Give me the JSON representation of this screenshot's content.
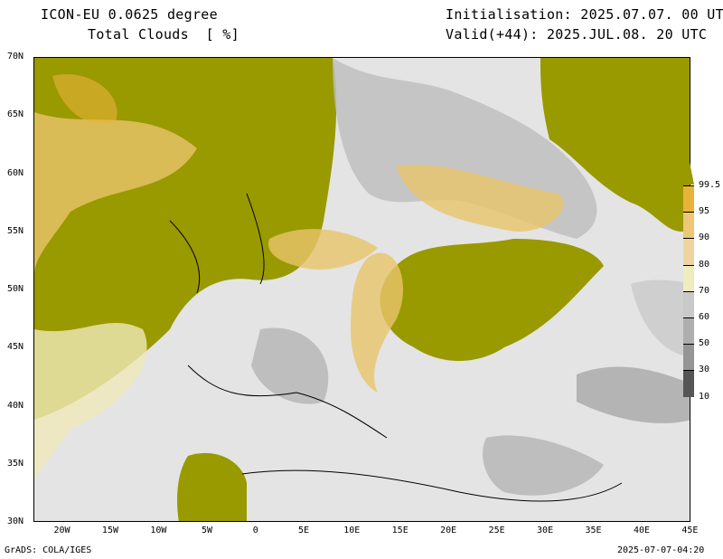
{
  "header": {
    "model": "ICON-EU 0.0625 degree",
    "variable": "Total Clouds  [ %]",
    "init": "Initialisation: 2025.07.07. 00 UTC",
    "valid": "Valid(+44): 2025.JUL.08. 20 UTC"
  },
  "axes": {
    "lon_labels": [
      "20W",
      "15W",
      "10W",
      "5W",
      "0",
      "5E",
      "10E",
      "15E",
      "20E",
      "25E",
      "30E",
      "35E",
      "40E",
      "45E"
    ],
    "lon_values": [
      -20,
      -15,
      -10,
      -5,
      0,
      5,
      10,
      15,
      20,
      25,
      30,
      35,
      40,
      45
    ],
    "lon_range": [
      -23,
      45
    ],
    "lat_labels": [
      "70N",
      "65N",
      "60N",
      "55N",
      "50N",
      "45N",
      "40N",
      "35N",
      "30N"
    ],
    "lat_values": [
      70,
      65,
      60,
      55,
      50,
      45,
      40,
      35,
      30
    ],
    "lat_range": [
      30,
      70
    ]
  },
  "colorbar": {
    "over_color": "#999900",
    "levels": [
      "99.5",
      "95",
      "90",
      "80",
      "70",
      "60",
      "50",
      "30",
      "10"
    ],
    "colors": [
      "#e9b33a",
      "#ebc777",
      "#eed59f",
      "#efedc0",
      "#c9c9c9",
      "#aeaeae",
      "#959595",
      "#555555"
    ]
  },
  "footer": {
    "left": "GrADS: COLA/IGES",
    "right": "2025-07-07-04:20"
  },
  "colors": {
    "overcast": "#999900",
    "clear": "#e4e4e4",
    "high": "#e9b33a"
  }
}
